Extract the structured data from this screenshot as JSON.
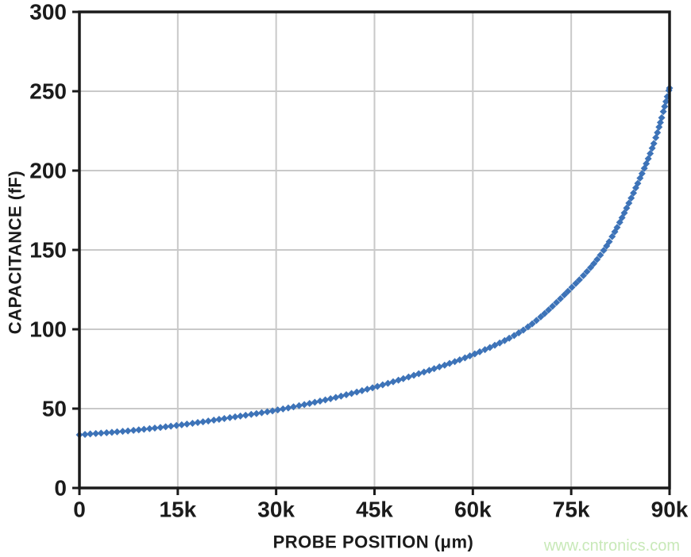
{
  "watermark": {
    "text": "www.cntronics.com",
    "color": "#c8e9b8"
  },
  "chart_data": {
    "type": "scatter",
    "title": "",
    "xlabel": "PROBE POSITION (μm)",
    "ylabel": "CAPACITANCE (fF)",
    "xlim": [
      0,
      90000
    ],
    "ylim": [
      0,
      300
    ],
    "grid": true,
    "legend": "none",
    "colors": {
      "marker": "#3d73b8",
      "grid": "#c9c9c9",
      "axis": "#1b1b1b"
    },
    "x_ticks": [
      {
        "value": 0,
        "label": "0"
      },
      {
        "value": 15000,
        "label": "15k"
      },
      {
        "value": 30000,
        "label": "30k"
      },
      {
        "value": 45000,
        "label": "45k"
      },
      {
        "value": 60000,
        "label": "60k"
      },
      {
        "value": 75000,
        "label": "75k"
      },
      {
        "value": 90000,
        "label": "90k"
      }
    ],
    "y_ticks": [
      {
        "value": 0,
        "label": "0"
      },
      {
        "value": 50,
        "label": "50"
      },
      {
        "value": 100,
        "label": "100"
      },
      {
        "value": 150,
        "label": "150"
      },
      {
        "value": 200,
        "label": "200"
      },
      {
        "value": 250,
        "label": "250"
      },
      {
        "value": 300,
        "label": "300"
      }
    ],
    "series": [
      {
        "name": "capacitance-vs-probe-position",
        "points_x": [
          0,
          7500,
          15000,
          22500,
          30000,
          37500,
          45000,
          52500,
          60000,
          67500,
          75000,
          80000,
          86000,
          88000,
          90000
        ],
        "points_y": [
          33.5,
          36,
          39.5,
          44,
          49,
          55.5,
          63.5,
          73,
          84,
          99,
          126,
          150,
          200,
          222,
          252
        ],
        "interpolation": "monotone-cubic",
        "marker_shape": "diamond",
        "marker_size_px": 9,
        "marker_arc_spacing_px": 6.8
      }
    ]
  }
}
